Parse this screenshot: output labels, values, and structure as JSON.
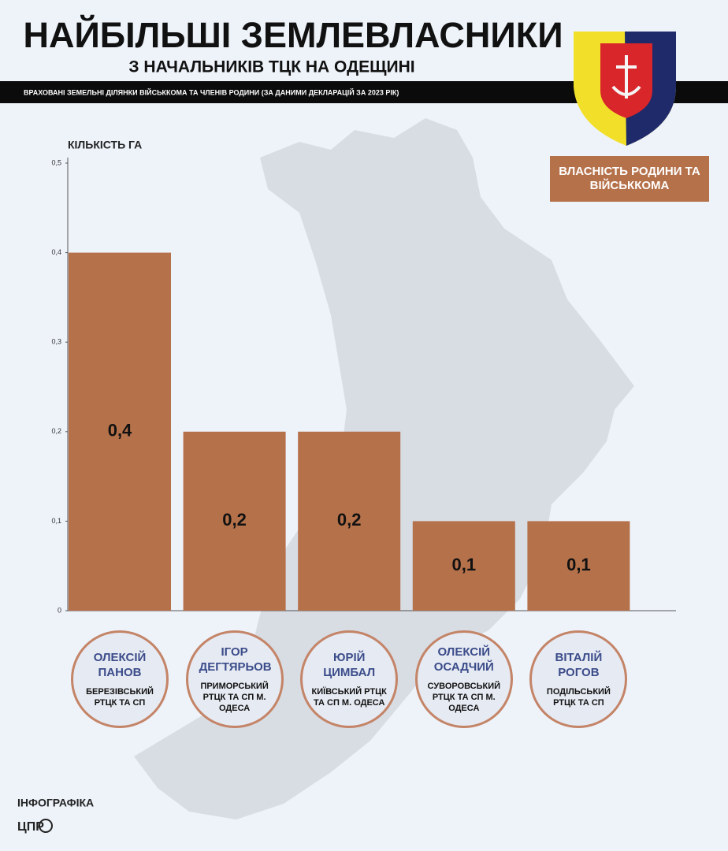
{
  "chart_data": {
    "type": "bar",
    "title": "НАЙБІЛЬШІ ЗЕМЛЕВЛАСНИКИ",
    "subtitle": "З НАЧАЛЬНИКІВ ТЦК НА ОДЕЩИНІ",
    "note": "ВРАХОВАНІ ЗЕМЕЛЬНІ ДІЛЯНКИ ВІЙСЬККОМА ТА ЧЛЕНІВ РОДИНИ (ЗА ДАНИМИ ДЕКЛАРАЦІЙ ЗА 2023 РІК)",
    "y_label": "КІЛЬКІСТЬ ГА",
    "categories": [
      "ОЛЕКСІЙ ПАНОВ",
      "ІГОР ДЕГТЯРЬОВ",
      "ЮРІЙ ЦИМБАЛ",
      "ОЛЕКСІЙ ОСАДЧИЙ",
      "ВІТАЛІЙ РОГОВ"
    ],
    "category_units": [
      "БЕРЕЗІВСЬКИЙ РТЦК ТА СП",
      "ПРИМОРСЬКИЙ РТЦК ТА СП М. ОДЕСА",
      "КИЇВСЬКИЙ РТЦК ТА СП М. ОДЕСА",
      "СУВОРОВСЬКИЙ РТЦК ТА СП М. ОДЕСА",
      "ПОДІЛЬСЬКИЙ РТЦК ТА СП"
    ],
    "series": [
      {
        "name": "ВЛАСНІСТЬ РОДИНИ ТА ВІЙСЬККОМА",
        "color": "#b5714a",
        "values": [
          0.4,
          0.2,
          0.2,
          0.1,
          0.1
        ],
        "value_labels": [
          "0,4",
          "0,2",
          "0,2",
          "0,1",
          "0,1"
        ]
      }
    ],
    "ylim": [
      0,
      0.5
    ],
    "yticks": [
      0,
      {
        "value": 0.1,
        "label": "0,1"
      },
      {
        "value": 0.2,
        "label": "0,2"
      },
      {
        "value": 0.3,
        "label": "0,3"
      },
      {
        "value": 0.4,
        "label": "0,4"
      },
      {
        "value": 0.5,
        "label": "0,5"
      }
    ],
    "footer": "ІНФОГРАФІКА",
    "logo": "ЦПР"
  }
}
